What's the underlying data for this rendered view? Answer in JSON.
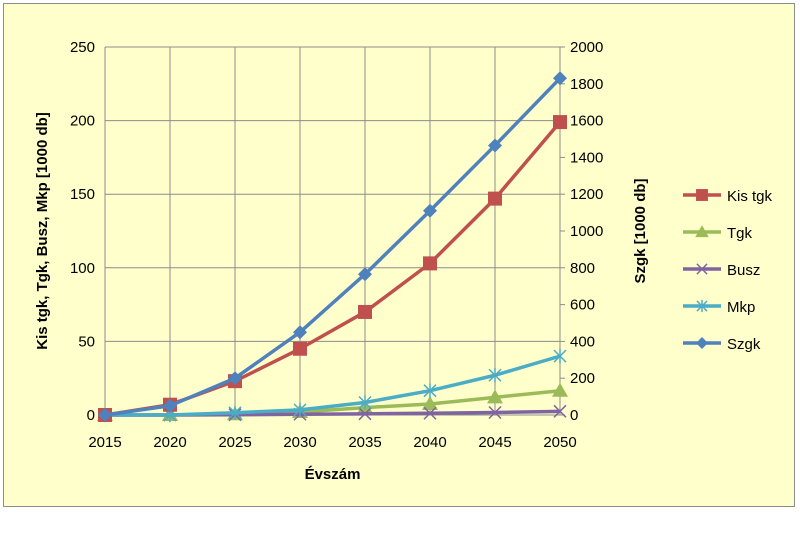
{
  "chart_data": {
    "type": "line",
    "xlabel": "Évszám",
    "ylabel": "Kis tgk, Tgk, Busz, Mkp [1000 db]",
    "y2label": "Szgk [1000 db]",
    "x": [
      2015,
      2020,
      2025,
      2030,
      2035,
      2040,
      2045,
      2050
    ],
    "ylim": [
      0,
      250
    ],
    "yticks": [
      0,
      50,
      100,
      150,
      200,
      250
    ],
    "y2lim": [
      0,
      2000
    ],
    "y2ticks": [
      0,
      200,
      400,
      600,
      800,
      1000,
      1200,
      1400,
      1600,
      1800,
      2000
    ],
    "grid": true,
    "legend": "right",
    "series": [
      {
        "name": "Kis tgk",
        "axis": "left",
        "color": "#C0504D",
        "marker": "square",
        "values": [
          0,
          7,
          23,
          45,
          70,
          103,
          147,
          199
        ]
      },
      {
        "name": "Tgk",
        "axis": "left",
        "color": "#9BBB59",
        "marker": "triangle",
        "values": [
          0,
          0,
          0.5,
          2,
          5,
          7.5,
          12,
          16.5
        ]
      },
      {
        "name": "Busz",
        "axis": "left",
        "color": "#8064A2",
        "marker": "x",
        "values": [
          0,
          0,
          0.2,
          0.5,
          0.8,
          1.2,
          1.7,
          2.5
        ]
      },
      {
        "name": "Mkp",
        "axis": "left",
        "color": "#4BACC6",
        "marker": "star",
        "values": [
          0,
          0,
          1.5,
          3.5,
          8.5,
          16.5,
          27,
          40
        ]
      },
      {
        "name": "Szgk",
        "axis": "right",
        "color": "#4F81BD",
        "marker": "diamond",
        "values": [
          0,
          50,
          200,
          450,
          765,
          1110,
          1465,
          1830
        ]
      }
    ]
  }
}
